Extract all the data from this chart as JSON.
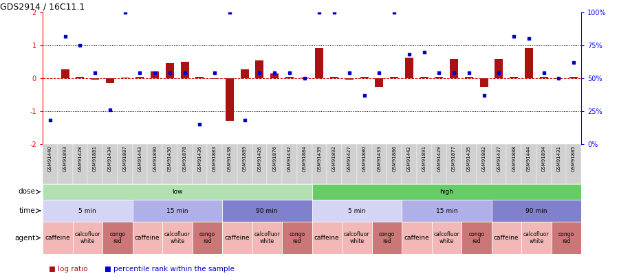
{
  "title": "GDS2914 / 16C11.1",
  "samples": [
    "GSM91440",
    "GSM91893",
    "GSM91428",
    "GSM91881",
    "GSM91434",
    "GSM91887",
    "GSM91443",
    "GSM91890",
    "GSM91430",
    "GSM91878",
    "GSM91436",
    "GSM91883",
    "GSM91438",
    "GSM91889",
    "GSM91426",
    "GSM91876",
    "GSM91432",
    "GSM91884",
    "GSM91439",
    "GSM91892",
    "GSM91427",
    "GSM91880",
    "GSM91433",
    "GSM91886",
    "GSM91442",
    "GSM91891",
    "GSM91429",
    "GSM91877",
    "GSM91435",
    "GSM91882",
    "GSM91437",
    "GSM91888",
    "GSM91444",
    "GSM91894",
    "GSM91431",
    "GSM91885"
  ],
  "log_ratio": [
    0.0,
    0.28,
    0.05,
    -0.05,
    -0.15,
    0.02,
    0.05,
    0.2,
    0.45,
    0.5,
    0.05,
    -0.02,
    -1.3,
    0.28,
    0.55,
    0.15,
    0.05,
    0.02,
    0.92,
    0.05,
    -0.05,
    0.05,
    -0.28,
    0.05,
    0.62,
    0.05,
    0.05,
    0.58,
    0.05,
    -0.28,
    0.58,
    0.05,
    0.92,
    0.05,
    -0.02,
    0.05
  ],
  "pct": [
    18,
    82,
    75,
    54,
    26,
    100,
    54,
    54,
    54,
    54,
    15,
    54,
    100,
    18,
    54,
    54,
    54,
    50,
    100,
    100,
    54,
    37,
    54,
    100,
    68,
    70,
    54,
    54,
    54,
    37,
    54,
    82,
    80,
    54,
    50,
    62
  ],
  "dose_groups": [
    {
      "label": "low",
      "start": 0,
      "end": 18,
      "color": "#b2e0b2"
    },
    {
      "label": "high",
      "start": 18,
      "end": 36,
      "color": "#66cc66"
    }
  ],
  "time_groups": [
    {
      "label": "5 min",
      "start": 0,
      "end": 6,
      "color": "#d4d4f5"
    },
    {
      "label": "15 min",
      "start": 6,
      "end": 12,
      "color": "#b0b0e8"
    },
    {
      "label": "90 min",
      "start": 12,
      "end": 18,
      "color": "#8080cc"
    },
    {
      "label": "5 min",
      "start": 18,
      "end": 24,
      "color": "#d4d4f5"
    },
    {
      "label": "15 min",
      "start": 24,
      "end": 30,
      "color": "#b0b0e8"
    },
    {
      "label": "90 min",
      "start": 30,
      "end": 36,
      "color": "#8080cc"
    }
  ],
  "agent_groups": [
    {
      "label": "caffeine",
      "start": 0,
      "end": 2,
      "color": "#f2b8b8"
    },
    {
      "label": "calcofluor\nwhite",
      "start": 2,
      "end": 4,
      "color": "#f2b8b8"
    },
    {
      "label": "congo\nred",
      "start": 4,
      "end": 6,
      "color": "#cc7777"
    },
    {
      "label": "caffeine",
      "start": 6,
      "end": 8,
      "color": "#f2b8b8"
    },
    {
      "label": "calcofluor\nwhite",
      "start": 8,
      "end": 10,
      "color": "#f2b8b8"
    },
    {
      "label": "congo\nred",
      "start": 10,
      "end": 12,
      "color": "#cc7777"
    },
    {
      "label": "caffeine",
      "start": 12,
      "end": 14,
      "color": "#f2b8b8"
    },
    {
      "label": "calcofluor\nwhite",
      "start": 14,
      "end": 16,
      "color": "#f2b8b8"
    },
    {
      "label": "congo\nred",
      "start": 16,
      "end": 18,
      "color": "#cc7777"
    },
    {
      "label": "caffeine",
      "start": 18,
      "end": 20,
      "color": "#f2b8b8"
    },
    {
      "label": "calcofluor\nwhite",
      "start": 20,
      "end": 22,
      "color": "#f2b8b8"
    },
    {
      "label": "congo\nred",
      "start": 22,
      "end": 24,
      "color": "#cc7777"
    },
    {
      "label": "caffeine",
      "start": 24,
      "end": 26,
      "color": "#f2b8b8"
    },
    {
      "label": "calcofluor\nwhite",
      "start": 26,
      "end": 28,
      "color": "#f2b8b8"
    },
    {
      "label": "congo\nred",
      "start": 28,
      "end": 30,
      "color": "#cc7777"
    },
    {
      "label": "caffeine",
      "start": 30,
      "end": 32,
      "color": "#f2b8b8"
    },
    {
      "label": "calcofluor\nwhite",
      "start": 32,
      "end": 34,
      "color": "#f2b8b8"
    },
    {
      "label": "congo\nred",
      "start": 34,
      "end": 36,
      "color": "#cc7777"
    }
  ],
  "ylim_left": [
    -2,
    2
  ],
  "ylim_right": [
    0,
    100
  ],
  "bar_color": "#aa1111",
  "dot_color": "#0000cc",
  "bg_color": "#ffffff"
}
